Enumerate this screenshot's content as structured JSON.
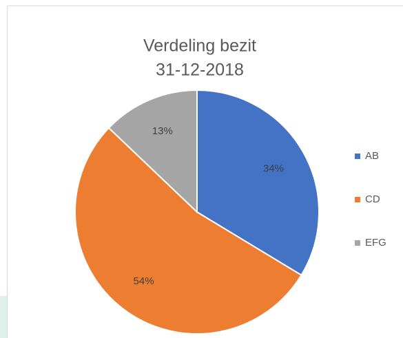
{
  "chart_data": {
    "type": "pie",
    "title": "Verdeling bezit",
    "subtitle": "31-12-2018",
    "categories": [
      "AB",
      "CD",
      "EFG"
    ],
    "values": [
      34,
      54,
      13
    ],
    "value_labels": [
      "34%",
      "54%",
      "13%"
    ],
    "colors": [
      "#4472c4",
      "#ed7d31",
      "#a5a5a5"
    ],
    "legend": "right"
  }
}
